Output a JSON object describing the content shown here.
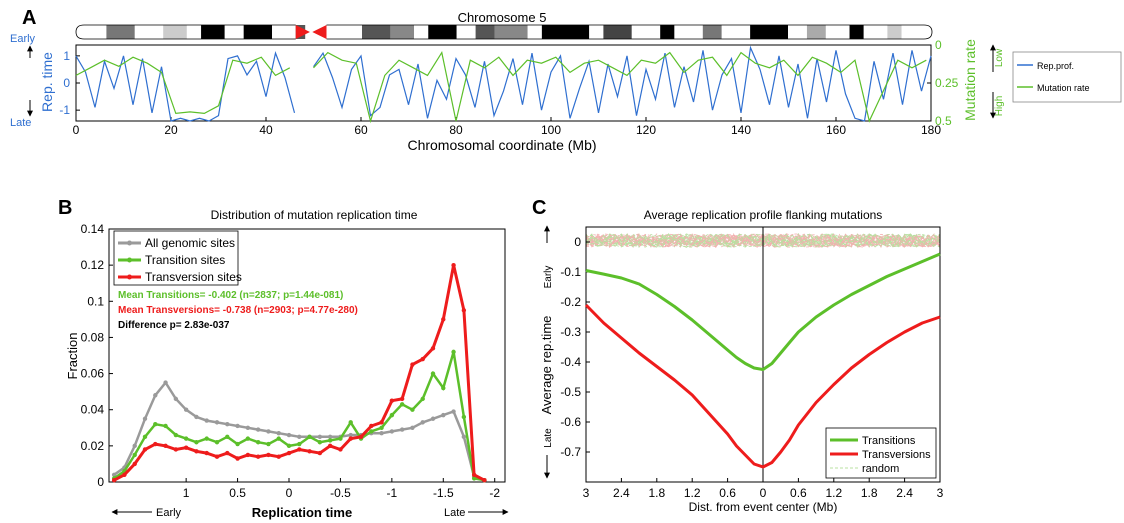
{
  "colors": {
    "blue": "#2f6fd0",
    "green": "#5cbf2a",
    "red": "#ee1c1c",
    "gray": "#9a9a9a",
    "black": "#000000"
  },
  "panelA": {
    "letter": "A",
    "chromosome_label": "Chromosome 5",
    "ylabel_left": "Rep. time",
    "early": "Early",
    "late": "Late",
    "ylabel_right": "Mutation rate",
    "low": "Low",
    "high": "High",
    "xlabel": "Chromosomal coordinate (Mb)",
    "legend": [
      "Rep.prof.",
      "Mutation rate"
    ]
  },
  "panelB": {
    "letter": "B",
    "title": "Distribution of mutation replication time",
    "ylabel": "Fraction",
    "xlabel": "Replication time",
    "early_arrow": "Early",
    "late_arrow": "Late",
    "stats": {
      "line1": "Mean Transitions= -0.402 (n=2837; p=1.44e-081)",
      "line2": "Mean Transversions= -0.738 (n=2903; p=4.77e-280)",
      "line3": "Difference p= 2.83e-037"
    }
  },
  "panelC": {
    "letter": "C",
    "title": "Average replication profile flanking mutations",
    "ylabel": "Average rep.time",
    "xlabel": "Dist. from event center (Mb)",
    "early": "Early",
    "late": "Late"
  },
  "chart_data": [
    {
      "type": "line",
      "title": "Chromosome 5",
      "xlabel": "Chromosomal coordinate (Mb)",
      "ylabel": "Rep. time",
      "y2label": "Mutation rate",
      "xlim": [
        0,
        180
      ],
      "ylim": [
        -1.4,
        1.4
      ],
      "y2lim": [
        0,
        0.5
      ],
      "xticks": [
        "0",
        "20",
        "40",
        "60",
        "80",
        "100",
        "120",
        "140",
        "160",
        "180"
      ],
      "yticks": [
        "1",
        "0",
        "-1"
      ],
      "y2ticks": [
        "0",
        "0.25",
        "0.5"
      ],
      "series": [
        {
          "name": "Rep.prof.",
          "x": [
            0,
            2,
            4,
            6,
            8,
            10,
            12,
            14,
            16,
            18,
            20,
            22,
            24,
            26,
            28,
            30,
            32,
            34,
            36,
            38,
            40,
            42,
            44,
            46,
            50,
            52,
            54,
            56,
            58,
            60,
            62,
            64,
            66,
            68,
            70,
            72,
            74,
            76,
            78,
            80,
            82,
            84,
            86,
            88,
            90,
            92,
            94,
            96,
            98,
            100,
            102,
            104,
            106,
            108,
            110,
            112,
            114,
            116,
            118,
            120,
            122,
            124,
            126,
            128,
            130,
            132,
            134,
            136,
            138,
            140,
            142,
            144,
            146,
            148,
            150,
            152,
            154,
            156,
            158,
            160,
            162,
            164,
            166,
            168,
            170,
            172,
            174,
            176,
            178,
            180
          ],
          "y": [
            1.0,
            0.4,
            -0.9,
            0.8,
            -0.2,
            1.0,
            -0.8,
            0.9,
            -1.1,
            0.6,
            -1.4,
            -1.3,
            -1.4,
            -1.3,
            -1.4,
            -1.2,
            0.9,
            1.0,
            0.3,
            0.8,
            -0.5,
            1.1,
            0.2,
            -1.1,
            0.6,
            1.1,
            0.2,
            -0.9,
            0.5,
            1.0,
            -1.2,
            -0.9,
            0.3,
            0.5,
            -0.8,
            0.7,
            -1.3,
            0.1,
            -0.6,
            0.9,
            0.3,
            -0.9,
            0.8,
            -1.2,
            -0.3,
            0.9,
            -0.8,
            1.1,
            -1.0,
            0.4,
            1.0,
            -1.3,
            -0.2,
            0.8,
            -1.1,
            0.7,
            -0.5,
            1.0,
            -1.2,
            0.5,
            -0.6,
            1.1,
            -0.9,
            0.6,
            -0.7,
            1.2,
            -1.0,
            0.3,
            0.9,
            -1.1,
            1.3,
            0.5,
            -0.8,
            1.0,
            -0.9,
            0.7,
            -1.3,
            0.9,
            -0.7,
            1.2,
            -0.4,
            -1.3,
            -1.4,
            0.8,
            -0.6,
            1.1,
            -0.8,
            1.2,
            -0.3,
            1.0
          ]
        },
        {
          "name": "Mutation rate",
          "x": [
            0,
            3,
            6,
            9,
            12,
            15,
            18,
            21,
            24,
            27,
            30,
            33,
            36,
            39,
            42,
            45,
            50,
            53,
            56,
            59,
            62,
            65,
            68,
            71,
            74,
            77,
            80,
            83,
            86,
            89,
            92,
            95,
            98,
            101,
            104,
            107,
            110,
            113,
            116,
            119,
            122,
            125,
            128,
            131,
            134,
            137,
            140,
            143,
            146,
            149,
            152,
            155,
            158,
            161,
            164,
            167,
            170,
            173,
            176,
            179
          ],
          "y": [
            0.2,
            0.15,
            0.1,
            0.14,
            0.08,
            0.12,
            0.18,
            0.45,
            0.44,
            0.45,
            0.4,
            0.1,
            0.12,
            0.08,
            0.2,
            0.15,
            0.15,
            0.05,
            0.1,
            0.12,
            0.5,
            0.2,
            0.1,
            0.15,
            0.2,
            0.05,
            0.5,
            0.1,
            0.15,
            0.08,
            0.2,
            0.1,
            0.12,
            0.08,
            0.18,
            0.12,
            0.1,
            0.15,
            0.2,
            0.1,
            0.12,
            0.05,
            0.18,
            0.1,
            0.08,
            0.2,
            0.05,
            0.12,
            0.15,
            0.1,
            0.2,
            0.08,
            0.12,
            0.18,
            0.1,
            0.5,
            0.3,
            0.1,
            0.15,
            0.1
          ]
        }
      ]
    },
    {
      "type": "line",
      "title": "Distribution of mutation replication time",
      "xlabel": "Replication time",
      "ylabel": "Fraction",
      "xlim": [
        1.75,
        -2.1
      ],
      "ylim": [
        0,
        0.14
      ],
      "xticks": [
        "1",
        "0.5",
        "0",
        "-0.5",
        "-1",
        "-1.5",
        "-2"
      ],
      "yticks": [
        "0",
        "0.02",
        "0.04",
        "0.06",
        "0.08",
        "0.1",
        "0.12",
        "0.14"
      ],
      "legend_position": "top-left",
      "series": [
        {
          "name": "All genomic sites",
          "x": [
            1.7,
            1.6,
            1.5,
            1.4,
            1.3,
            1.2,
            1.1,
            1.0,
            0.9,
            0.8,
            0.7,
            0.6,
            0.5,
            0.4,
            0.3,
            0.2,
            0.1,
            0.0,
            -0.1,
            -0.2,
            -0.3,
            -0.4,
            -0.5,
            -0.6,
            -0.7,
            -0.8,
            -0.9,
            -1.0,
            -1.1,
            -1.2,
            -1.3,
            -1.4,
            -1.5,
            -1.6,
            -1.7,
            -1.8,
            -1.9
          ],
          "y": [
            0.004,
            0.008,
            0.02,
            0.035,
            0.048,
            0.055,
            0.046,
            0.04,
            0.036,
            0.034,
            0.033,
            0.032,
            0.031,
            0.03,
            0.029,
            0.028,
            0.027,
            0.026,
            0.025,
            0.025,
            0.025,
            0.025,
            0.025,
            0.026,
            0.026,
            0.027,
            0.027,
            0.028,
            0.029,
            0.03,
            0.033,
            0.035,
            0.037,
            0.039,
            0.025,
            0.003,
            0.001
          ]
        },
        {
          "name": "Transition sites",
          "x": [
            1.7,
            1.6,
            1.5,
            1.4,
            1.3,
            1.2,
            1.1,
            1.0,
            0.9,
            0.8,
            0.7,
            0.6,
            0.5,
            0.4,
            0.3,
            0.2,
            0.1,
            0.0,
            -0.1,
            -0.2,
            -0.3,
            -0.4,
            -0.5,
            -0.6,
            -0.7,
            -0.8,
            -0.9,
            -1.0,
            -1.1,
            -1.2,
            -1.3,
            -1.4,
            -1.5,
            -1.6,
            -1.7,
            -1.8,
            -1.9
          ],
          "y": [
            0.002,
            0.006,
            0.015,
            0.025,
            0.032,
            0.031,
            0.026,
            0.024,
            0.022,
            0.024,
            0.022,
            0.025,
            0.021,
            0.024,
            0.022,
            0.021,
            0.024,
            0.02,
            0.021,
            0.025,
            0.022,
            0.023,
            0.024,
            0.033,
            0.024,
            0.028,
            0.03,
            0.037,
            0.043,
            0.04,
            0.046,
            0.06,
            0.052,
            0.072,
            0.036,
            0.002,
            0.001
          ]
        },
        {
          "name": "Transversion sites",
          "x": [
            1.7,
            1.6,
            1.5,
            1.4,
            1.3,
            1.2,
            1.1,
            1.0,
            0.9,
            0.8,
            0.7,
            0.6,
            0.5,
            0.4,
            0.3,
            0.2,
            0.1,
            0.0,
            -0.1,
            -0.2,
            -0.3,
            -0.4,
            -0.5,
            -0.6,
            -0.7,
            -0.8,
            -0.9,
            -1.0,
            -1.1,
            -1.2,
            -1.3,
            -1.4,
            -1.5,
            -1.6,
            -1.7,
            -1.8,
            -1.9
          ],
          "y": [
            0.001,
            0.004,
            0.01,
            0.018,
            0.021,
            0.02,
            0.018,
            0.019,
            0.017,
            0.016,
            0.014,
            0.016,
            0.013,
            0.015,
            0.014,
            0.015,
            0.014,
            0.016,
            0.018,
            0.017,
            0.016,
            0.02,
            0.018,
            0.024,
            0.025,
            0.031,
            0.033,
            0.045,
            0.046,
            0.065,
            0.068,
            0.074,
            0.09,
            0.12,
            0.095,
            0.004,
            0.001
          ]
        }
      ]
    },
    {
      "type": "line",
      "title": "Average replication profile flanking mutations",
      "xlabel": "Dist. from event center (Mb)",
      "ylabel": "Average rep.time",
      "xlim": [
        -3,
        3
      ],
      "ylim": [
        -0.8,
        0.05
      ],
      "xticks": [
        "3",
        "2.4",
        "1.8",
        "1.2",
        "0.6",
        "0",
        "0.6",
        "1.2",
        "1.8",
        "2.4",
        "3"
      ],
      "yticks": [
        "0",
        "-0.1",
        "-0.2",
        "-0.3",
        "-0.4",
        "-0.5",
        "-0.6",
        "-0.7"
      ],
      "legend_position": "bottom-right",
      "series": [
        {
          "name": "Transitions",
          "x": [
            -3,
            -2.7,
            -2.4,
            -2.1,
            -1.8,
            -1.5,
            -1.2,
            -0.9,
            -0.6,
            -0.45,
            -0.3,
            -0.15,
            0,
            0.15,
            0.3,
            0.45,
            0.6,
            0.9,
            1.2,
            1.5,
            1.8,
            2.1,
            2.4,
            2.7,
            3
          ],
          "y": [
            -0.095,
            -0.107,
            -0.12,
            -0.14,
            -0.175,
            -0.215,
            -0.26,
            -0.31,
            -0.36,
            -0.385,
            -0.405,
            -0.42,
            -0.425,
            -0.405,
            -0.37,
            -0.335,
            -0.3,
            -0.25,
            -0.21,
            -0.175,
            -0.145,
            -0.115,
            -0.09,
            -0.065,
            -0.04
          ]
        },
        {
          "name": "Transversions",
          "x": [
            -3,
            -2.7,
            -2.4,
            -2.1,
            -1.8,
            -1.5,
            -1.2,
            -0.9,
            -0.6,
            -0.45,
            -0.3,
            -0.15,
            0,
            0.15,
            0.3,
            0.45,
            0.6,
            0.9,
            1.2,
            1.5,
            1.8,
            2.1,
            2.4,
            2.7,
            3
          ],
          "y": [
            -0.21,
            -0.27,
            -0.32,
            -0.37,
            -0.415,
            -0.46,
            -0.51,
            -0.575,
            -0.64,
            -0.68,
            -0.71,
            -0.74,
            -0.75,
            -0.735,
            -0.7,
            -0.66,
            -0.61,
            -0.535,
            -0.475,
            -0.42,
            -0.375,
            -0.335,
            -0.3,
            -0.27,
            -0.25
          ]
        },
        {
          "name": "random",
          "x": [
            -3,
            -1.5,
            0,
            1.5,
            3
          ],
          "y": [
            0.0,
            0.0,
            0.0,
            0.0,
            0.0
          ]
        }
      ]
    }
  ]
}
